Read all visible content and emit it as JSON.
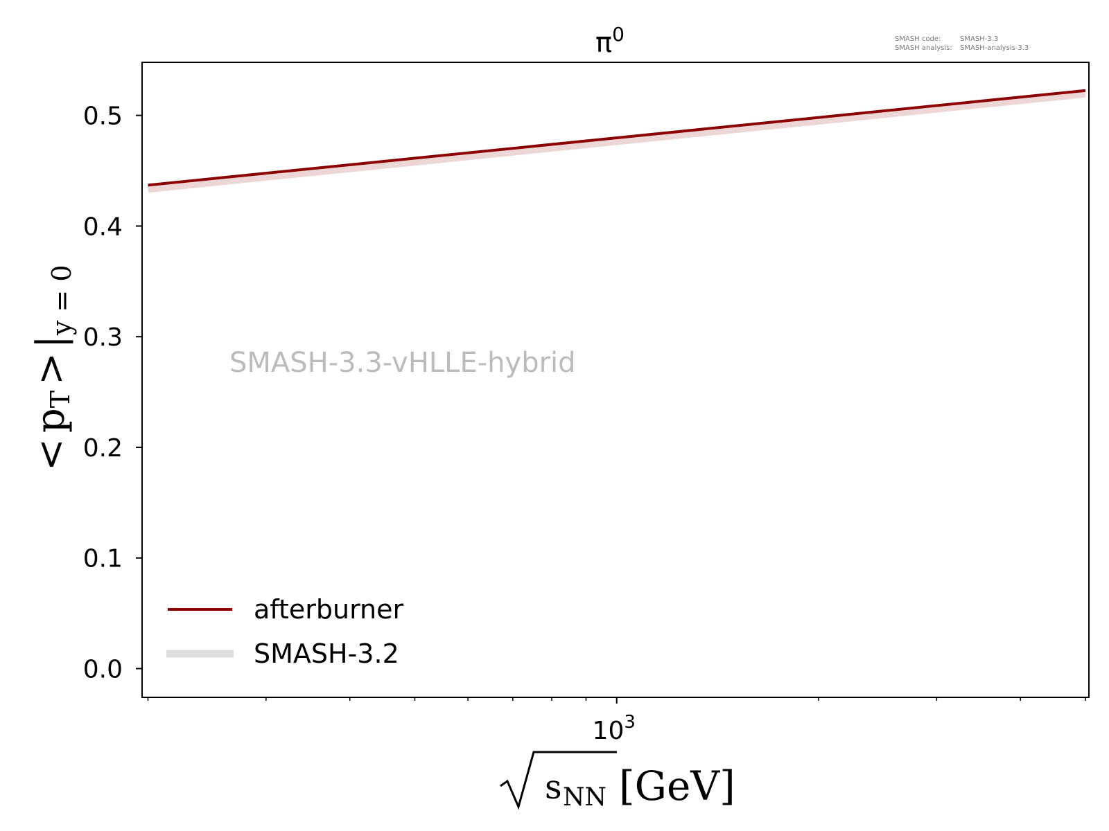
{
  "chart_data": {
    "type": "line",
    "title": "π",
    "title_superscript": "0",
    "xlabel": "√s_NN [GeV]",
    "xlabel_parts": {
      "sqrt_arg": "s",
      "sqrt_sub": "NN",
      "unit": "[GeV]"
    },
    "ylabel": "<p_T>|_{y=0}",
    "ylabel_parts": {
      "open": "<",
      "p": "p",
      "p_sub": "T",
      "close": ">",
      "bar": "|",
      "bar_sub": "y = 0"
    },
    "xscale": "log",
    "xlim": [
      196,
      5060
    ],
    "ylim": [
      -0.026,
      0.548
    ],
    "yticks": [
      0.0,
      0.1,
      0.2,
      0.3,
      0.4,
      0.5
    ],
    "ytick_labels": [
      "0.0",
      "0.1",
      "0.2",
      "0.3",
      "0.4",
      "0.5"
    ],
    "xtick_major": {
      "value": 1000,
      "base": "10",
      "exp": "3"
    },
    "xtick_minor": [
      200,
      300,
      400,
      500,
      600,
      700,
      800,
      900,
      2000,
      3000,
      4000,
      5000
    ],
    "grid": false,
    "legend_position": "lower-left",
    "series": [
      {
        "name": "SMASH-3.2",
        "color": "#dddddd",
        "x": [
          200,
          5000
        ],
        "y": [
          0.433,
          0.519
        ]
      },
      {
        "name": "afterburner",
        "color": "#8b0000",
        "x": [
          200,
          5000
        ],
        "y": [
          0.437,
          0.5225
        ]
      }
    ],
    "legend_order": [
      "afterburner",
      "SMASH-3.2"
    ],
    "annotations": {
      "watermark": "SMASH-3.3-vHLLE-hybrid",
      "meta_code_label": "SMASH code:",
      "meta_code_value": "SMASH-3.3",
      "meta_analysis_label": "SMASH analysis:",
      "meta_analysis_value": "SMASH-analysis-3.3"
    }
  }
}
